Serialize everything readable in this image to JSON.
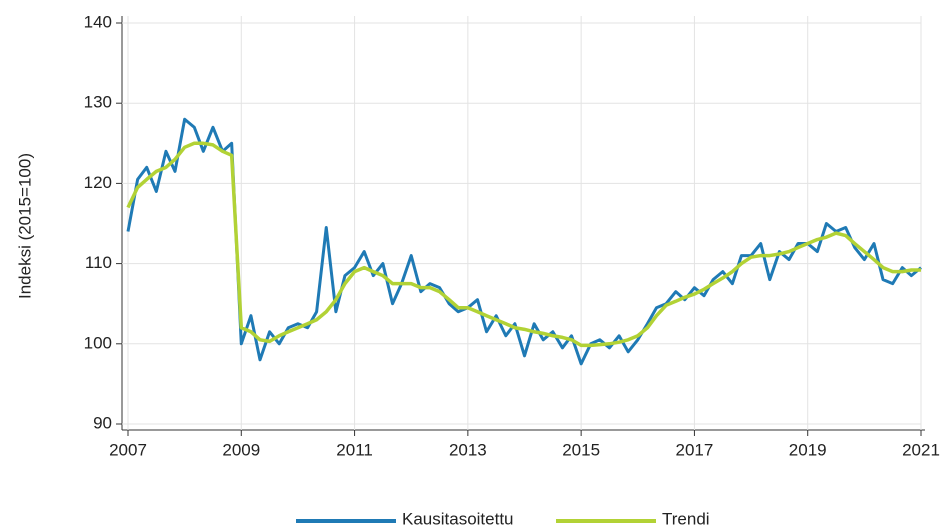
{
  "chart_data": {
    "type": "line",
    "y_label": "Indeksi (2015=100)",
    "x": [
      2007,
      2007.17,
      2007.33,
      2007.5,
      2007.67,
      2007.83,
      2008,
      2008.17,
      2008.33,
      2008.5,
      2008.67,
      2008.83,
      2009,
      2009.17,
      2009.33,
      2009.5,
      2009.67,
      2009.83,
      2010,
      2010.17,
      2010.33,
      2010.5,
      2010.67,
      2010.83,
      2011,
      2011.17,
      2011.33,
      2011.5,
      2011.67,
      2011.83,
      2012,
      2012.17,
      2012.33,
      2012.5,
      2012.67,
      2012.83,
      2013,
      2013.17,
      2013.33,
      2013.5,
      2013.67,
      2013.83,
      2014,
      2014.17,
      2014.33,
      2014.5,
      2014.67,
      2014.83,
      2015,
      2015.17,
      2015.33,
      2015.5,
      2015.67,
      2015.83,
      2016,
      2016.17,
      2016.33,
      2016.5,
      2016.67,
      2016.83,
      2017,
      2017.17,
      2017.33,
      2017.5,
      2017.67,
      2017.83,
      2018,
      2018.17,
      2018.33,
      2018.5,
      2018.67,
      2018.83,
      2019,
      2019.17,
      2019.33,
      2019.5,
      2019.67,
      2019.83,
      2020,
      2020.17,
      2020.33,
      2020.5,
      2020.67,
      2020.83,
      2021
    ],
    "series": [
      {
        "name": "Kausitasoitettu",
        "color": "#1f7ab5",
        "values": [
          114,
          120.5,
          122,
          119,
          124,
          121.5,
          128,
          127,
          124,
          127,
          124,
          125,
          100,
          103.5,
          98,
          101.5,
          100,
          102,
          102.5,
          102,
          104,
          114.5,
          104,
          108.5,
          109.5,
          111.5,
          108.5,
          110,
          105,
          107.5,
          111,
          106.5,
          107.5,
          107,
          105,
          104,
          104.5,
          105.5,
          101.5,
          103.5,
          101,
          102.5,
          98.5,
          102.5,
          100.5,
          101.5,
          99.5,
          101,
          97.5,
          100,
          100.5,
          99.5,
          101,
          99,
          100.5,
          102.5,
          104.5,
          105,
          106.5,
          105.5,
          107,
          106,
          108,
          109,
          107.5,
          111,
          111,
          112.5,
          108,
          111.5,
          110.5,
          112.5,
          112.5,
          111.5,
          115,
          114,
          114.5,
          112,
          110.5,
          112.5,
          108,
          107.5,
          109.5,
          108.5,
          109.5
        ]
      },
      {
        "name": "Trendi",
        "color": "#b2d235",
        "values": [
          117,
          119.5,
          120.5,
          121.5,
          122,
          123,
          124.5,
          125,
          125,
          124.8,
          124,
          123.5,
          102,
          101.5,
          100.5,
          100.3,
          101,
          101.5,
          102,
          102.5,
          103,
          104,
          105.5,
          107.5,
          109,
          109.5,
          109,
          108.5,
          107.5,
          107.5,
          107.5,
          107,
          107,
          106.5,
          105.5,
          104.5,
          104.5,
          104,
          103.5,
          103,
          102.5,
          102,
          101.8,
          101.5,
          101.3,
          101,
          100.8,
          100.5,
          99.8,
          99.8,
          99.9,
          100,
          100.2,
          100.5,
          101,
          102,
          103.5,
          104.8,
          105.3,
          105.8,
          106.2,
          106.8,
          107.5,
          108.2,
          109,
          110,
          110.8,
          111,
          111,
          111.2,
          111.5,
          112,
          112.5,
          113,
          113.3,
          113.8,
          113.5,
          112.5,
          111.5,
          110.5,
          109.5,
          109,
          109,
          109.2,
          109.2
        ]
      }
    ],
    "xlim": [
      2007,
      2021
    ],
    "xticks": [
      2007,
      2009,
      2011,
      2013,
      2015,
      2017,
      2019,
      2021
    ],
    "ylim": [
      90,
      140
    ],
    "yticks": [
      90,
      100,
      110,
      120,
      130,
      140
    ],
    "grid": true,
    "legend": "bottom"
  }
}
